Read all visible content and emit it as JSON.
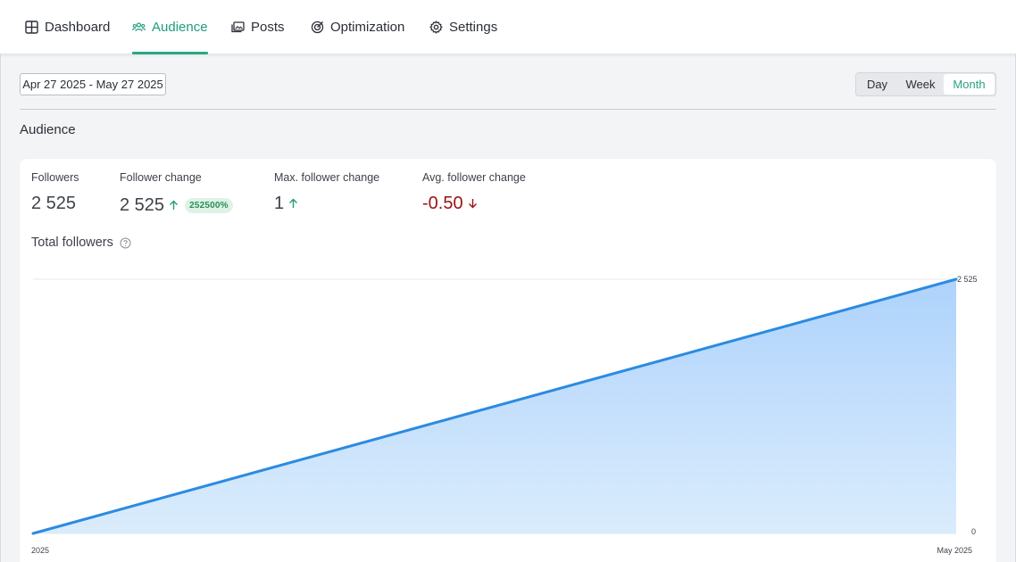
{
  "nav": {
    "tabs": [
      {
        "label": "Dashboard",
        "icon": "dashboard-grid-icon",
        "active": false
      },
      {
        "label": "Audience",
        "icon": "audience-icon",
        "active": true
      },
      {
        "label": "Posts",
        "icon": "posts-images-icon",
        "active": false
      },
      {
        "label": "Optimization",
        "icon": "target-icon",
        "active": false
      },
      {
        "label": "Settings",
        "icon": "gear-icon",
        "active": false
      }
    ]
  },
  "controls": {
    "date_range": "Apr 27 2025 - May 27 2025",
    "granularity": [
      "Day",
      "Week",
      "Month"
    ],
    "selected_granularity": "Month"
  },
  "section": {
    "title": "Audience"
  },
  "stats": {
    "followers": {
      "label": "Followers",
      "value": "2 525"
    },
    "follower_change": {
      "label": "Follower change",
      "value": "2 525",
      "badge": "252500%",
      "direction": "up"
    },
    "max_change": {
      "label": "Max. follower change",
      "value": "1",
      "direction": "up"
    },
    "avg_change": {
      "label": "Avg. follower change",
      "value": "-0.50",
      "direction": "down"
    }
  },
  "chart_title": "Total followers",
  "colors": {
    "accent_green": "#1f9c7e",
    "line_blue": "#2b8be0",
    "area_blue": "#a9d0fb",
    "negative_red": "#9a1313",
    "badge_bg": "#dff3e5"
  },
  "chart_data": {
    "type": "area",
    "x": [
      "2025",
      "May 2025"
    ],
    "series": [
      {
        "values": [
          0,
          2525
        ]
      }
    ],
    "ylim": [
      0,
      2525
    ],
    "y_ticks": [
      "0",
      "2 525"
    ],
    "x_ticks": [
      "2025",
      "May 2025"
    ],
    "y_axis_side": "right",
    "grid": true
  }
}
